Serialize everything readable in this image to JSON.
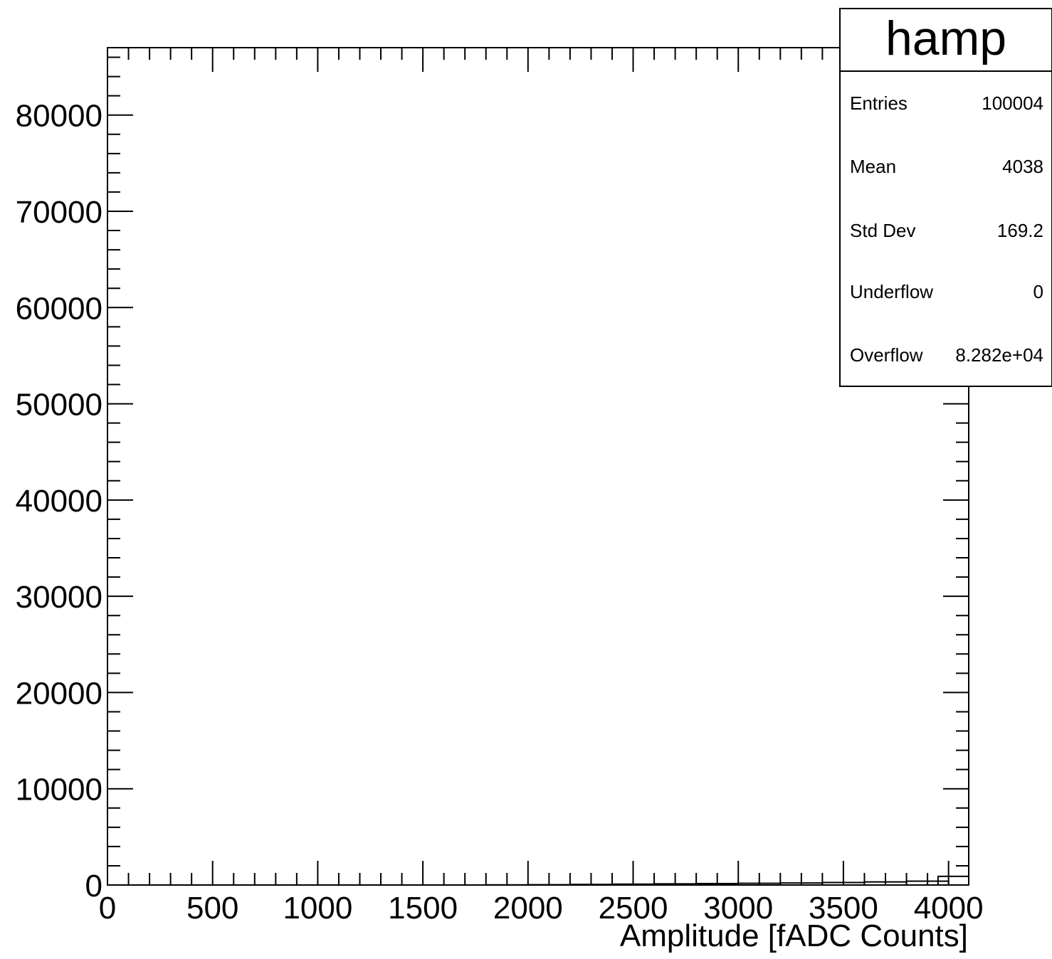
{
  "chart_data": {
    "type": "bar",
    "title": "",
    "xlabel": "Amplitude [fADC Counts]",
    "ylabel": "",
    "xlim": [
      0,
      4096
    ],
    "ylim": [
      0,
      87000
    ],
    "x_ticks": [
      0,
      500,
      1000,
      1500,
      2000,
      2500,
      3000,
      3500,
      4000
    ],
    "x_tick_labels": [
      "0",
      "500",
      "1000",
      "1500",
      "2000",
      "2500",
      "3000",
      "3500",
      "4000"
    ],
    "y_ticks": [
      0,
      10000,
      20000,
      30000,
      40000,
      50000,
      60000,
      70000,
      80000
    ],
    "y_tick_labels": [
      "0",
      "10000",
      "20000",
      "30000",
      "40000",
      "50000",
      "60000",
      "70000",
      "80000"
    ],
    "grid": false,
    "series": [
      {
        "x": [
          1900,
          2100,
          2300,
          2500,
          2700,
          2900,
          3100,
          3300,
          3500,
          3700,
          3900,
          4050
        ],
        "values": [
          15,
          30,
          60,
          90,
          120,
          150,
          180,
          210,
          260,
          320,
          400,
          900
        ]
      }
    ],
    "stats_box": {
      "title": "hamp",
      "rows": [
        {
          "label": "Entries",
          "value": "100004"
        },
        {
          "label": "Mean",
          "value": "4038"
        },
        {
          "label": "Std Dev",
          "value": "169.2"
        },
        {
          "label": "Underflow",
          "value": "0"
        },
        {
          "label": "Overflow",
          "value": "8.282e+04"
        }
      ]
    }
  }
}
